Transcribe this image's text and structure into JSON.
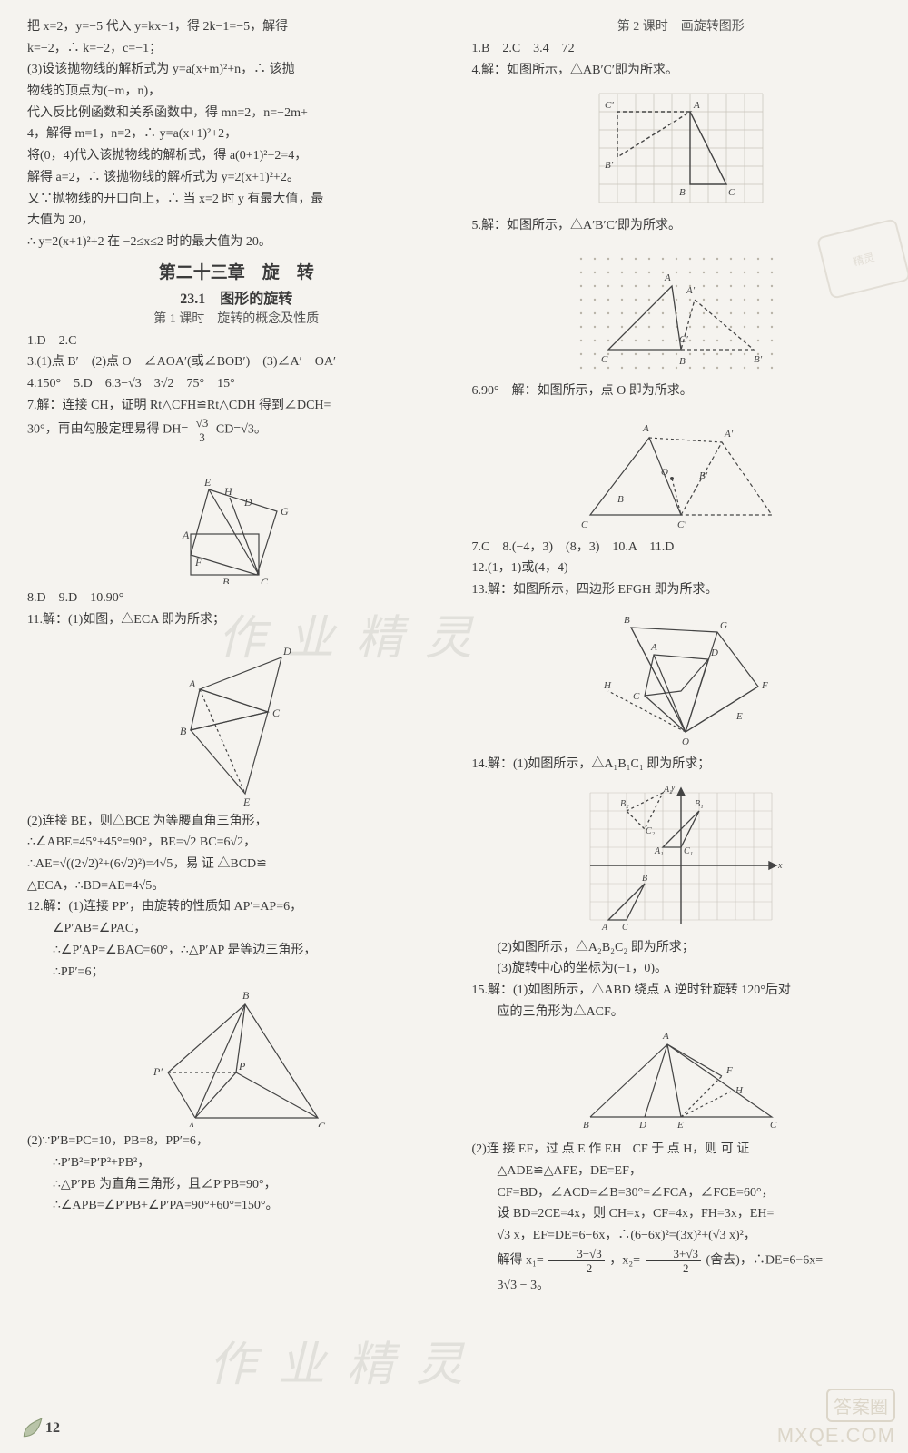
{
  "page_number": "12",
  "footer_brand_top": "答案圈",
  "footer_brand_bottom": "MXQE.COM",
  "watermarks": [
    "作业精灵",
    "作业精灵"
  ],
  "stamp_text": "精灵",
  "left": {
    "l1": "把 x=2，y=−5 代入 y=kx−1，得 2k−1=−5，解得",
    "l2": "k=−2，∴ k=−2，c=−1；",
    "l3": "(3)设该抛物线的解析式为 y=a(x+m)²+n，∴ 该抛",
    "l4": "物线的顶点为(−m，n)，",
    "l5": "代入反比例函数和关系函数中，得 mn=2，n=−2m+",
    "l6": "4，解得 m=1，n=2，∴ y=a(x+1)²+2，",
    "l7": "将(0，4)代入该抛物线的解析式，得 a(0+1)²+2=4，",
    "l8": "解得 a=2，∴ 该抛物线的解析式为 y=2(x+1)²+2。",
    "l9": "又∵抛物线的开口向上，∴ 当 x=2 时 y 有最大值，最",
    "l10": "大值为 20，",
    "l11": "∴ y=2(x+1)²+2 在 −2≤x≤2 时的最大值为 20。",
    "chapter": "第二十三章　旋　转",
    "section": "23.1　图形的旋转",
    "subsection1": "第 1 课时　旋转的概念及性质",
    "a1": "1.D　2.C",
    "a3": "3.(1)点 B′　(2)点 O　∠AOA′(或∠BOB′)　(3)∠A′　OA′",
    "a4": "4.150°　5.D　6.3−√3　3√2　75°　15°",
    "a7a": "7.解：连接 CH，证明 Rt△CFH≌Rt△CDH 得到∠DCH=",
    "a7b_pre": "30°，再由勾股定理易得 DH=",
    "a7b_frac_num": "√3",
    "a7b_frac_den": "3",
    "a7b_post": "CD=√3。",
    "fig1_labels": {
      "E": "E",
      "A": "A",
      "H": "H",
      "D": "D",
      "G": "G",
      "F": "F",
      "B": "B",
      "C": "C"
    },
    "a8": "8.D　9.D　10.90°",
    "a11a": "11.解：(1)如图，△ECA 即为所求；",
    "fig2_labels": {
      "D": "D",
      "A": "A",
      "B": "B",
      "C": "C",
      "E": "E"
    },
    "a11b": "(2)连接 BE，则△BCE 为等腰直角三角形，",
    "a11c": "∴∠ABE=45°+45°=90°，BE=√2 BC=6√2，",
    "a11d": "∴AE=√((2√2)²+(6√2)²)=4√5，易 证 △BCD≌",
    "a11e": "△ECA，∴BD=AE=4√5。",
    "a12a": "12.解：(1)连接 PP′，由旋转的性质知 AP′=AP=6，",
    "a12b": "∠P′AB=∠PAC，",
    "a12c": "∴∠P′AP=∠BAC=60°，∴△P′AP 是等边三角形，",
    "a12d": "∴PP′=6；",
    "fig3_labels": {
      "B": "B",
      "P'": "P′",
      "P": "P",
      "A": "A",
      "C": "C"
    },
    "a12e": "(2)∵P′B=PC=10，PB=8，PP′=6，",
    "a12f": "∴P′B²=P′P²+PB²，",
    "a12g": "∴△P′PB 为直角三角形，且∠P′PB=90°，",
    "a12h": "∴∠APB=∠P′PB+∠P′PA=90°+60°=150°。"
  },
  "right": {
    "subsection2": "第 2 课时　画旋转图形",
    "b1": "1.B　2.C　3.4　72",
    "b4": "4.解：如图所示，△AB′C′即为所求。",
    "fig4_labels": {
      "C'": "C′",
      "A": "A",
      "B'": "B′",
      "B": "B",
      "C": "C"
    },
    "b5": "5.解：如图所示，△A′B′C′即为所求。",
    "fig5_labels": {
      "A'": "A′",
      "A": "A",
      "C'": "C′",
      "B'": "B′",
      "C": "C",
      "B": "B"
    },
    "b6": "6.90°　解：如图所示，点 O 即为所求。",
    "fig6_labels": {
      "A": "A",
      "A'": "A′",
      "B": "B",
      "O": "O",
      "C'": "C′",
      "B'": "B′",
      "C": "C"
    },
    "b7": "7.C　8.(−4，3)　(8，3)　10.A　11.D",
    "b12": "12.(1，1)或(4，4)",
    "b13": "13.解：如图所示，四边形 EFGH 即为所求。",
    "fig7_labels": {
      "B": "B",
      "G": "G",
      "H": "H",
      "A": "A",
      "D": "D",
      "F": "F",
      "C": "C",
      "E": "E",
      "O": "O"
    },
    "b14a": "14.解：(1)如图所示，△A₁B₁C₁ 即为所求；",
    "fig8_labels": {
      "B2": "B₂",
      "A2": "A₂",
      "C2": "C₂",
      "B1": "B₁",
      "A1": "A₁",
      "C1": "C₁",
      "A": "A",
      "C": "C",
      "B": "B",
      "x": "x",
      "y": "y"
    },
    "b14b": "(2)如图所示，△A₂B₂C₂ 即为所求；",
    "b14c": "(3)旋转中心的坐标为(−1，0)。",
    "b15a": "15.解：(1)如图所示，△ABD 绕点 A 逆时针旋转 120°后对",
    "b15b": "应的三角形为△ACF。",
    "fig9_labels": {
      "A": "A",
      "F": "F",
      "H": "H",
      "B": "B",
      "D": "D",
      "E": "E",
      "C": "C"
    },
    "b15c": "(2)连 接 EF，过 点 E 作 EH⊥CF 于 点 H，则 可 证",
    "b15d": "△ADE≌△AFE，DE=EF，",
    "b15e": "CF=BD，∠ACD=∠B=30°=∠FCA，∠FCE=60°，",
    "b15f": "设 BD=2CE=4x，则 CH=x，CF=4x，FH=3x，EH=",
    "b15g": "√3 x，EF=DE=6−6x，∴(6−6x)²=(3x)²+(√3 x)²，",
    "b15h_pre": "解得 x₁=",
    "b15h_f1n": "3−√3",
    "b15h_f1d": "2",
    "b15h_mid": "，x₂=",
    "b15h_f2n": "3+√3",
    "b15h_f2d": "2",
    "b15h_post": "(舍去)，∴DE=6−6x=",
    "b15i": "3√3 − 3。"
  }
}
